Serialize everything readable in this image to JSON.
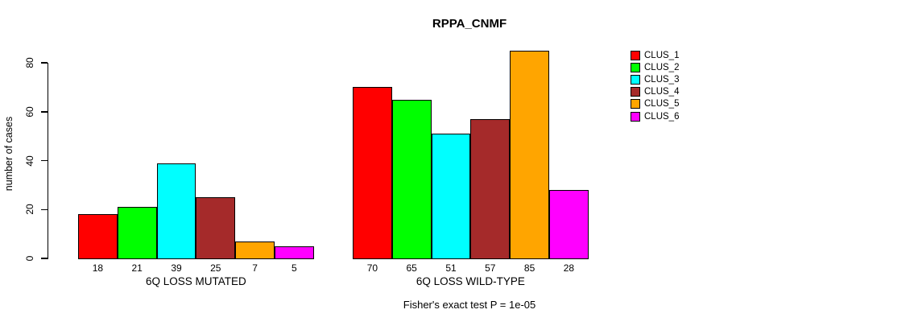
{
  "chart_data": {
    "type": "bar",
    "title": "RPPA_CNMF",
    "ylabel": "number of cases",
    "xlabel": "",
    "ylim": [
      0,
      85
    ],
    "yticks": [
      0,
      20,
      40,
      60,
      80
    ],
    "grid": false,
    "legend_position": "right",
    "legend": [
      "CLUS_1",
      "CLUS_2",
      "CLUS_3",
      "CLUS_4",
      "CLUS_5",
      "CLUS_6"
    ],
    "colors": [
      "#ff0000",
      "#00ff00",
      "#00ffff",
      "#a52a2a",
      "#ffa500",
      "#ff00ff"
    ],
    "groups": [
      {
        "label": "6Q LOSS MUTATED",
        "values": [
          18,
          21,
          39,
          25,
          7,
          5
        ]
      },
      {
        "label": "6Q LOSS WILD-TYPE",
        "values": [
          70,
          65,
          51,
          57,
          85,
          28
        ]
      }
    ],
    "annotation": "Fisher's exact test P = 1e-05",
    "background": "#ffffff",
    "axis_color": "#000000"
  }
}
